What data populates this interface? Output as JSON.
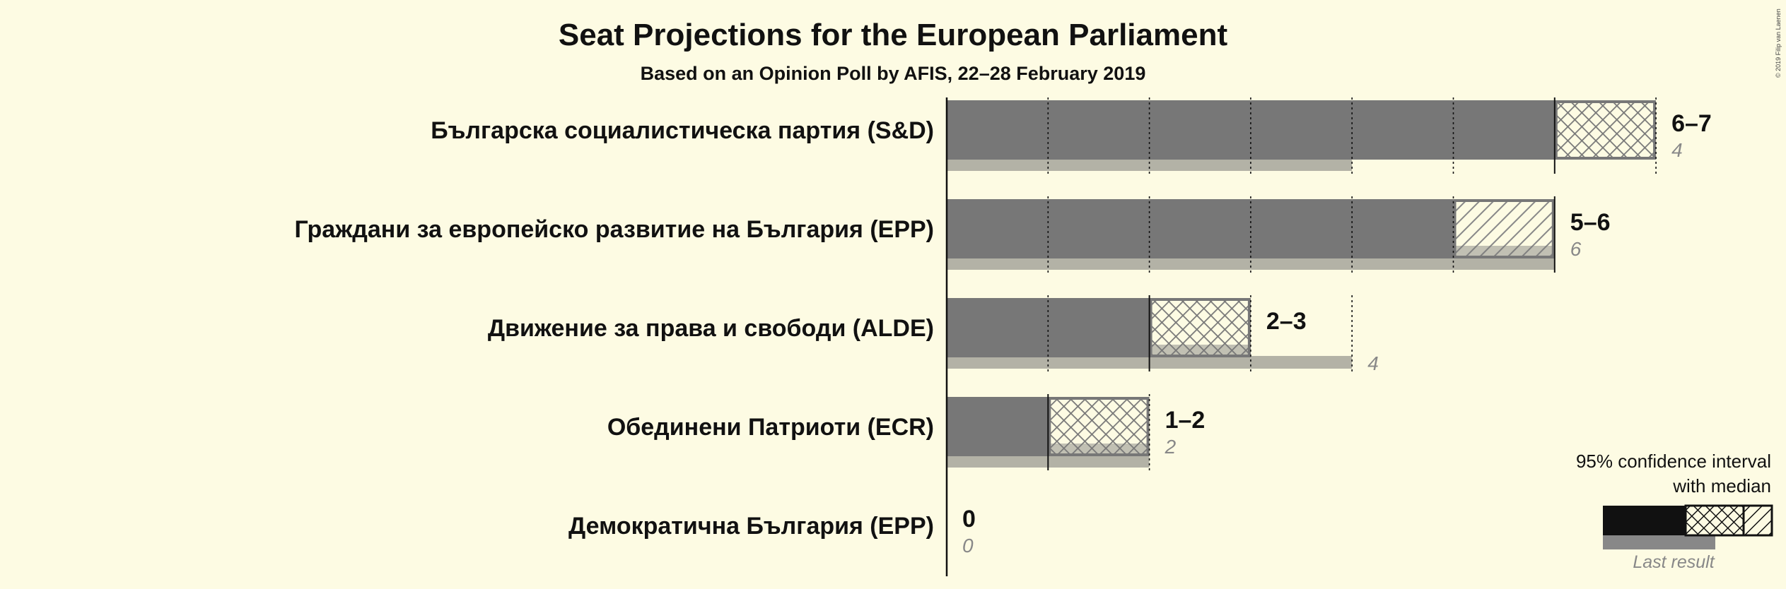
{
  "chart_data": {
    "type": "bar",
    "title": "Seat Projections for the European Parliament",
    "subtitle": "Based on an Opinion Poll by AFIS, 22–28 February 2019",
    "copyright": "© 2019 Filip van Laenen",
    "parties": [
      {
        "name": "Българска социалистическа партия (S&D)",
        "low": 6,
        "median": 6,
        "high": 7,
        "last_result": 4,
        "range_label": "6–7",
        "last_label": "4"
      },
      {
        "name": "Граждани за европейско развитие на България (EPP)",
        "low": 5,
        "median": 6,
        "high": 6,
        "last_result": 6,
        "range_label": "5–6",
        "last_label": "6"
      },
      {
        "name": "Движение за права и свободи (ALDE)",
        "low": 2,
        "median": 2,
        "high": 3,
        "last_result": 4,
        "range_label": "2–3",
        "last_label": "4"
      },
      {
        "name": "Обединени Патриоти (ECR)",
        "low": 1,
        "median": 1,
        "high": 2,
        "last_result": 2,
        "range_label": "1–2",
        "last_label": "2"
      },
      {
        "name": "Демократична България (EPP)",
        "low": 0,
        "median": 0,
        "high": 0,
        "last_result": 0,
        "range_label": "0",
        "last_label": "0"
      }
    ],
    "legend": {
      "line1": "95% confidence interval",
      "line2": "with median",
      "last_result": "Last result"
    },
    "colors": {
      "background": "#fdfbe3",
      "bar": "#777777",
      "last_result": "#b3b2a6",
      "legend_bar": "#111111"
    }
  }
}
